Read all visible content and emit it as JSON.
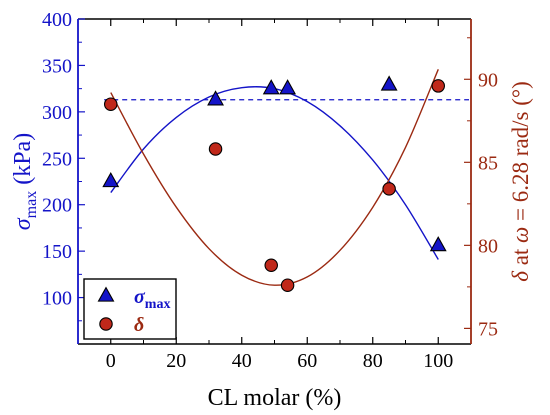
{
  "colors": {
    "left_axis": "#1414c8",
    "right_axis": "#9b2a12",
    "sigma_marker": "#1414c8",
    "delta_marker": "#c0281a",
    "axis_black": "#000000"
  },
  "chart_data": {
    "type": "scatter",
    "x": {
      "label": "CL molar (%)",
      "range": [
        -10,
        110
      ],
      "ticks": [
        "0",
        "20",
        "40",
        "60",
        "80",
        "100"
      ]
    },
    "y_left": {
      "label_symbol": "σ",
      "label_sub": "max",
      "label_unit": "(kPa)",
      "range": [
        50,
        400
      ],
      "ticks": [
        "100",
        "150",
        "200",
        "250",
        "300",
        "350",
        "400"
      ]
    },
    "y_right": {
      "label_delta": "δ",
      "label_mid": " at ",
      "label_omega": "ω",
      "label_rest": " = 6.28 rad/s (°)",
      "range": [
        74.06,
        93.63
      ],
      "ticks": [
        "75",
        "80",
        "85",
        "90"
      ]
    },
    "series": [
      {
        "name_symbol": "σ",
        "name_sub": "max",
        "marker": "triangle",
        "axis": "left",
        "x": [
          0,
          32,
          49,
          54,
          85,
          100
        ],
        "y": [
          225,
          313,
          325,
          325,
          329,
          156
        ],
        "fit": {
          "type": "quadratic",
          "x": [
            0,
            10,
            20,
            30,
            40,
            50,
            60,
            70,
            80,
            90,
            100
          ],
          "y": [
            213,
            260,
            294,
            316,
            326,
            325,
            311,
            285,
            248,
            200,
            141
          ]
        }
      },
      {
        "name_symbol": "δ",
        "name_sub": "",
        "marker": "circle",
        "axis": "right",
        "x": [
          0,
          32,
          49,
          54,
          85,
          100
        ],
        "y": [
          88.5,
          85.8,
          78.8,
          77.6,
          83.4,
          89.6
        ],
        "fit": {
          "type": "quadratic",
          "x": [
            0,
            10,
            20,
            30,
            40,
            50,
            60,
            70,
            80,
            90,
            100
          ],
          "y": [
            89.2,
            85.5,
            82.3,
            79.8,
            78.2,
            77.6,
            78.1,
            79.7,
            82.3,
            85.9,
            90.6
          ]
        }
      }
    ],
    "reference_line": {
      "axis": "left",
      "y": 313,
      "style": "dashed"
    },
    "legend": {
      "placement": "bottom-left"
    }
  }
}
